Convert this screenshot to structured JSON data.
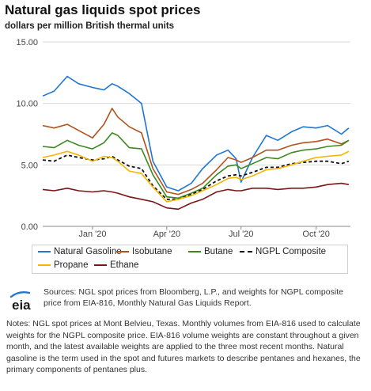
{
  "title": "Natural gas liquids spot prices",
  "subtitle": "dollars per million British thermal units",
  "sources": "Sources: NGL spot prices from Bloomberg, L.P., and weights for NGPL composite price from EIA-816, Monthly Natural Gas Liquids Report.",
  "notes": "Notes: NGL spot prices at Mont Belvieu, Texas. Monthly volumes from EIA-816 used to calculate weights for the NGPL composite price. EIA-816 volume weights are constant throughout a given month, and the latest available weights are applied to the three most recent months. Natural gasoline is the term used in the spot and futures markets to describe pentanes and hexanes, the primary components of pentanes plus.",
  "logo": {
    "text": "eia",
    "icon": "eia-logo-icon"
  },
  "chart_data": {
    "type": "line",
    "title": "Natural gas liquids spot prices",
    "ylabel": "dollars per million British thermal units",
    "xlabel": "",
    "ylim": [
      0,
      15
    ],
    "yticks": [
      "15.00",
      "10.00",
      "5.00",
      "0.00"
    ],
    "ytick_values": [
      15,
      10,
      5,
      0
    ],
    "xlim": [
      "2019-11-01",
      "2020-11-12"
    ],
    "xticks": [
      {
        "label": "Jan '20",
        "date": "2020-01-01"
      },
      {
        "label": "Apr '20",
        "date": "2020-04-01"
      },
      {
        "label": "Jul '20",
        "date": "2020-07-01"
      },
      {
        "label": "Oct '20",
        "date": "2020-10-01"
      }
    ],
    "grid": "horizontal",
    "legend_placement": "bottom",
    "x": [
      "2019-11-01",
      "2019-11-15",
      "2019-12-01",
      "2019-12-15",
      "2020-01-01",
      "2020-01-15",
      "2020-01-25",
      "2020-02-01",
      "2020-02-15",
      "2020-03-01",
      "2020-03-15",
      "2020-04-01",
      "2020-04-15",
      "2020-05-01",
      "2020-05-15",
      "2020-06-01",
      "2020-06-15",
      "2020-06-25",
      "2020-07-01",
      "2020-07-15",
      "2020-08-01",
      "2020-08-15",
      "2020-09-01",
      "2020-09-15",
      "2020-10-01",
      "2020-10-15",
      "2020-11-01",
      "2020-11-10"
    ],
    "series": [
      {
        "name": "Natural Gasoline",
        "color": "#1f77d4",
        "dash": false,
        "values": [
          10.6,
          11.0,
          12.2,
          11.6,
          11.3,
          11.1,
          11.6,
          11.4,
          10.8,
          10.0,
          5.3,
          3.2,
          2.9,
          3.5,
          4.7,
          5.8,
          6.2,
          5.5,
          3.6,
          5.6,
          7.4,
          7.0,
          7.7,
          8.1,
          8.0,
          8.2,
          7.5,
          8.0
        ]
      },
      {
        "name": "Isobutane",
        "color": "#b0521c",
        "dash": false,
        "values": [
          8.2,
          8.0,
          8.3,
          7.8,
          7.2,
          8.3,
          9.6,
          8.9,
          8.1,
          7.6,
          4.7,
          2.8,
          2.6,
          3.0,
          3.5,
          4.6,
          5.6,
          5.4,
          5.2,
          5.6,
          6.2,
          6.2,
          6.6,
          6.8,
          6.9,
          7.1,
          6.7,
          7.0
        ]
      },
      {
        "name": "Butane",
        "color": "#3c8a1f",
        "dash": false,
        "values": [
          6.5,
          6.4,
          7.0,
          6.6,
          6.3,
          6.8,
          7.6,
          7.4,
          6.4,
          6.3,
          4.2,
          2.4,
          2.3,
          2.7,
          3.1,
          4.2,
          4.9,
          5.0,
          4.7,
          5.1,
          5.6,
          5.5,
          6.0,
          6.2,
          6.3,
          6.5,
          6.6,
          7.0
        ]
      },
      {
        "name": "NGPL Composite",
        "color": "#111111",
        "dash": true,
        "values": [
          5.4,
          5.3,
          5.8,
          5.6,
          5.4,
          5.5,
          5.7,
          5.4,
          4.9,
          4.7,
          3.3,
          2.2,
          2.2,
          2.6,
          3.0,
          3.7,
          4.1,
          4.2,
          4.1,
          4.4,
          4.8,
          4.8,
          5.1,
          5.2,
          5.3,
          5.3,
          5.1,
          5.3
        ]
      },
      {
        "name": "Propane",
        "color": "#f5b400",
        "dash": false,
        "values": [
          5.6,
          5.8,
          6.1,
          5.8,
          5.3,
          5.7,
          5.6,
          5.3,
          4.5,
          4.3,
          3.2,
          2.0,
          2.2,
          2.5,
          2.9,
          3.4,
          3.9,
          4.0,
          3.8,
          4.1,
          4.6,
          4.7,
          5.0,
          5.3,
          5.6,
          5.7,
          5.8,
          6.1
        ]
      },
      {
        "name": "Ethane",
        "color": "#7a1619",
        "dash": false,
        "values": [
          3.0,
          2.9,
          3.1,
          2.9,
          2.8,
          2.9,
          2.8,
          2.7,
          2.4,
          2.2,
          2.0,
          1.5,
          1.4,
          1.9,
          2.2,
          2.8,
          3.0,
          2.9,
          2.9,
          3.1,
          3.1,
          3.0,
          3.1,
          3.1,
          3.2,
          3.4,
          3.5,
          3.4
        ]
      }
    ]
  }
}
